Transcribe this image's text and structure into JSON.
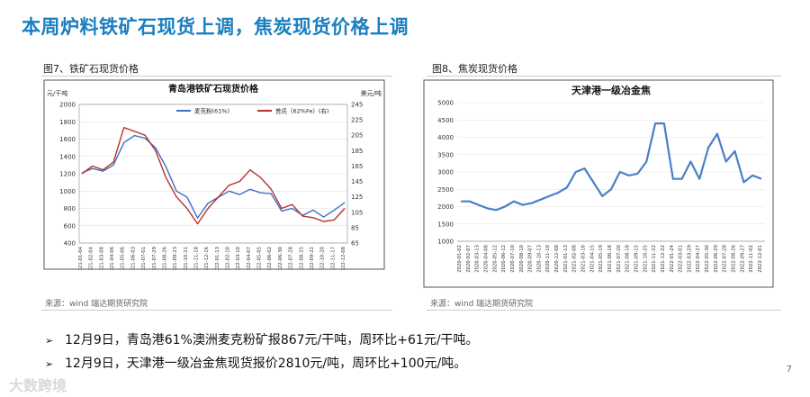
{
  "title": "本周炉料铁矿石现货上调，焦炭现货价格上调",
  "page_number": "7",
  "watermark": "大数跨境",
  "bullets": [
    "12月9日，青岛港61%澳洲麦克粉矿报867元/干吨，周环比+61元/干吨。",
    "12月9日，天津港一级冶金焦现货报价2810元/吨，周环比+100元/吨。"
  ],
  "colors": {
    "title": "#1a7fbf",
    "series_blue": "#3e6fc2",
    "series_red": "#b8322e"
  },
  "chart_data": [
    {
      "type": "line",
      "caption": "图7、铁矿石现货价格",
      "title": "青岛港铁矿石现货价格",
      "source": "来源：wind   瑞达期货研究院",
      "ylabel_left": "元/干吨",
      "ylabel_right": "美元/吨",
      "ylim_left": [
        400,
        2000
      ],
      "ylim_right": [
        65,
        245
      ],
      "yticks_left": [
        "400",
        "600",
        "800",
        "1000",
        "1200",
        "1400",
        "1600",
        "1800",
        "2000"
      ],
      "yticks_right": [
        "65",
        "85",
        "105",
        "125",
        "145",
        "165",
        "185",
        "205",
        "225",
        "245"
      ],
      "categories": [
        "2021-01-04",
        "2021-02-04",
        "2021-03-08",
        "2021-04-06",
        "2021-05-06",
        "2021-06-03",
        "2021-07-01",
        "2021-07-29",
        "2021-08-26",
        "2021-09-23",
        "2021-10-21",
        "2021-11-18",
        "2021-12-16",
        "2022-01-13",
        "2022-02-10",
        "2022-03-10",
        "2022-04-07",
        "2022-05-05",
        "2022-06-02",
        "2022-06-30",
        "2022-07-28",
        "2022-08-25",
        "2022-09-22",
        "2022-10-20",
        "2022-11-17",
        "2022-12-08"
      ],
      "series": [
        {
          "name": "麦克粉(61%)",
          "axis": "left",
          "values": [
            1210,
            1260,
            1230,
            1300,
            1560,
            1640,
            1610,
            1500,
            1280,
            1000,
            930,
            690,
            860,
            930,
            1000,
            960,
            1020,
            980,
            970,
            770,
            800,
            720,
            780,
            700,
            780,
            867
          ]
        },
        {
          "name": "普氏（62%Fe）(右)",
          "axis": "right",
          "values": [
            155,
            165,
            160,
            170,
            215,
            210,
            205,
            185,
            150,
            125,
            110,
            90,
            110,
            125,
            140,
            145,
            160,
            150,
            135,
            110,
            115,
            100,
            98,
            93,
            95,
            110
          ]
        }
      ]
    },
    {
      "type": "line",
      "caption": "图8、焦炭现货价格",
      "title": "天津港一级冶金焦",
      "source": "来源：wind   瑞达期货研究院",
      "ylim": [
        1000,
        5000
      ],
      "yticks": [
        "1000",
        "1500",
        "2000",
        "2500",
        "3000",
        "3500",
        "4000",
        "4500",
        "5000"
      ],
      "categories": [
        "2020-01-02",
        "2020-02-07",
        "2020-03-13",
        "2020-04-08",
        "2020-05-12",
        "2020-06-12",
        "2020-07-10",
        "2020-08-10",
        "2020-09-07",
        "2020-10-13",
        "2020-11-10",
        "2020-12-08",
        "2021-01-13",
        "2021-02-08",
        "2021-03-16",
        "2021-04-15",
        "2021-05-19",
        "2021-06-18",
        "2021-07-20",
        "2021-08-18",
        "2021-09-15",
        "2021-10-25",
        "2021-11-22",
        "2021-12-22",
        "2022-01-24",
        "2022-03-01",
        "2022-03-29",
        "2022-04-27",
        "2022-05-30",
        "2022-06-29",
        "2022-07-28",
        "2022-08-26",
        "2022-09-27",
        "2022-11-02",
        "2022-12-01"
      ],
      "series": [
        {
          "name": "天津港一级冶金焦",
          "values": [
            2150,
            2150,
            2050,
            1950,
            1900,
            2000,
            2150,
            2050,
            2100,
            2200,
            2300,
            2400,
            2550,
            3000,
            3100,
            2700,
            2300,
            2500,
            3000,
            2900,
            2950,
            3300,
            4400,
            4400,
            2800,
            2800,
            3300,
            2800,
            3700,
            4100,
            3300,
            3600,
            2700,
            2900,
            2800
          ]
        }
      ]
    }
  ]
}
